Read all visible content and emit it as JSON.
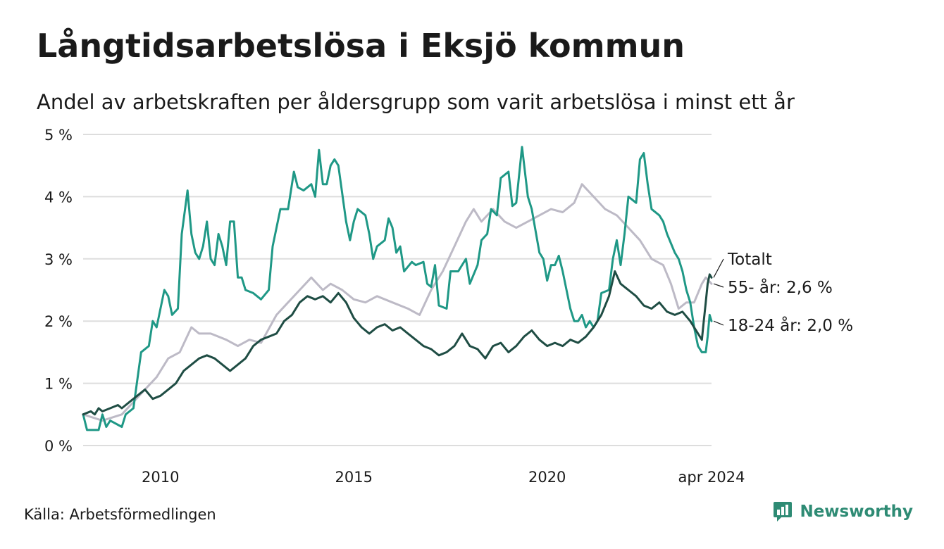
{
  "header": {
    "title": "Långtidsarbetslösa i Eksjö kommun",
    "subtitle": "Andel av arbetskraften per åldersgrupp som varit arbetslösa i minst ett år"
  },
  "footer": {
    "source": "Källa: Arbetsförmedlingen",
    "brand": "Newsworthy"
  },
  "colors": {
    "total": "#1f4d44",
    "age_18_24": "#1f9886",
    "age_55": "#bdbac6",
    "grid": "#dddddd"
  },
  "chart_data": {
    "type": "line",
    "title": "Långtidsarbetslösa i Eksjö kommun",
    "subtitle": "Andel av arbetskraften per åldersgrupp som varit arbetslösa i minst ett år",
    "xlabel": "",
    "ylabel": "",
    "xlim": [
      2008.0,
      2024.25
    ],
    "ylim": [
      0,
      5
    ],
    "y_ticks": [
      0,
      1,
      2,
      3,
      4,
      5
    ],
    "y_tick_labels": [
      "0 %",
      "1 %",
      "2 %",
      "3 %",
      "4 %",
      "5 %"
    ],
    "x_ticks": [
      2010,
      2015,
      2020,
      2024.25
    ],
    "x_tick_labels": [
      "2010",
      "2015",
      "2020",
      "apr 2024"
    ],
    "grid": true,
    "series": [
      {
        "name": "55- år",
        "end_label": "55- år: 2,6 %",
        "color": "#bdbac6",
        "points": [
          [
            2008.0,
            0.5
          ],
          [
            2008.5,
            0.4
          ],
          [
            2009.0,
            0.5
          ],
          [
            2009.3,
            0.7
          ],
          [
            2009.6,
            0.9
          ],
          [
            2009.9,
            1.1
          ],
          [
            2010.2,
            1.4
          ],
          [
            2010.5,
            1.5
          ],
          [
            2010.8,
            1.9
          ],
          [
            2011.0,
            1.8
          ],
          [
            2011.3,
            1.8
          ],
          [
            2011.7,
            1.7
          ],
          [
            2012.0,
            1.6
          ],
          [
            2012.3,
            1.7
          ],
          [
            2012.6,
            1.65
          ],
          [
            2013.0,
            2.1
          ],
          [
            2013.3,
            2.3
          ],
          [
            2013.6,
            2.5
          ],
          [
            2013.9,
            2.7
          ],
          [
            2014.2,
            2.5
          ],
          [
            2014.4,
            2.6
          ],
          [
            2014.7,
            2.5
          ],
          [
            2015.0,
            2.35
          ],
          [
            2015.3,
            2.3
          ],
          [
            2015.6,
            2.4
          ],
          [
            2016.0,
            2.3
          ],
          [
            2016.4,
            2.2
          ],
          [
            2016.7,
            2.1
          ],
          [
            2017.0,
            2.5
          ],
          [
            2017.3,
            2.8
          ],
          [
            2017.6,
            3.2
          ],
          [
            2017.9,
            3.6
          ],
          [
            2018.1,
            3.8
          ],
          [
            2018.3,
            3.6
          ],
          [
            2018.6,
            3.8
          ],
          [
            2018.9,
            3.6
          ],
          [
            2019.2,
            3.5
          ],
          [
            2019.5,
            3.6
          ],
          [
            2019.8,
            3.7
          ],
          [
            2020.1,
            3.8
          ],
          [
            2020.4,
            3.75
          ],
          [
            2020.7,
            3.9
          ],
          [
            2020.9,
            4.2
          ],
          [
            2021.2,
            4.0
          ],
          [
            2021.5,
            3.8
          ],
          [
            2021.8,
            3.7
          ],
          [
            2022.1,
            3.5
          ],
          [
            2022.4,
            3.3
          ],
          [
            2022.7,
            3.0
          ],
          [
            2023.0,
            2.9
          ],
          [
            2023.2,
            2.6
          ],
          [
            2023.4,
            2.2
          ],
          [
            2023.6,
            2.3
          ],
          [
            2023.8,
            2.3
          ],
          [
            2024.0,
            2.6
          ],
          [
            2024.1,
            2.7
          ],
          [
            2024.25,
            2.6
          ]
        ]
      },
      {
        "name": "18-24 år",
        "end_label": "18-24 år: 2,0 %",
        "color": "#1f9886",
        "points": [
          [
            2008.0,
            0.5
          ],
          [
            2008.1,
            0.25
          ],
          [
            2008.4,
            0.25
          ],
          [
            2008.5,
            0.5
          ],
          [
            2008.6,
            0.3
          ],
          [
            2008.7,
            0.4
          ],
          [
            2009.0,
            0.3
          ],
          [
            2009.1,
            0.5
          ],
          [
            2009.3,
            0.6
          ],
          [
            2009.5,
            1.5
          ],
          [
            2009.7,
            1.6
          ],
          [
            2009.8,
            2.0
          ],
          [
            2009.9,
            1.9
          ],
          [
            2010.0,
            2.2
          ],
          [
            2010.1,
            2.5
          ],
          [
            2010.2,
            2.4
          ],
          [
            2010.3,
            2.1
          ],
          [
            2010.45,
            2.2
          ],
          [
            2010.55,
            3.4
          ],
          [
            2010.7,
            4.1
          ],
          [
            2010.8,
            3.4
          ],
          [
            2010.9,
            3.1
          ],
          [
            2011.0,
            3.0
          ],
          [
            2011.1,
            3.2
          ],
          [
            2011.2,
            3.6
          ],
          [
            2011.3,
            3.0
          ],
          [
            2011.4,
            2.9
          ],
          [
            2011.5,
            3.4
          ],
          [
            2011.6,
            3.2
          ],
          [
            2011.7,
            2.9
          ],
          [
            2011.8,
            3.6
          ],
          [
            2011.9,
            3.6
          ],
          [
            2012.0,
            2.7
          ],
          [
            2012.1,
            2.7
          ],
          [
            2012.2,
            2.5
          ],
          [
            2012.4,
            2.45
          ],
          [
            2012.6,
            2.35
          ],
          [
            2012.8,
            2.5
          ],
          [
            2012.9,
            3.2
          ],
          [
            2013.1,
            3.8
          ],
          [
            2013.3,
            3.8
          ],
          [
            2013.45,
            4.4
          ],
          [
            2013.55,
            4.15
          ],
          [
            2013.7,
            4.1
          ],
          [
            2013.9,
            4.2
          ],
          [
            2014.0,
            4.0
          ],
          [
            2014.1,
            4.75
          ],
          [
            2014.2,
            4.2
          ],
          [
            2014.3,
            4.2
          ],
          [
            2014.4,
            4.5
          ],
          [
            2014.5,
            4.6
          ],
          [
            2014.6,
            4.5
          ],
          [
            2014.8,
            3.6
          ],
          [
            2014.9,
            3.3
          ],
          [
            2015.0,
            3.6
          ],
          [
            2015.1,
            3.8
          ],
          [
            2015.3,
            3.7
          ],
          [
            2015.4,
            3.4
          ],
          [
            2015.5,
            3.0
          ],
          [
            2015.6,
            3.2
          ],
          [
            2015.8,
            3.3
          ],
          [
            2015.9,
            3.65
          ],
          [
            2016.0,
            3.5
          ],
          [
            2016.1,
            3.1
          ],
          [
            2016.2,
            3.2
          ],
          [
            2016.3,
            2.8
          ],
          [
            2016.5,
            2.95
          ],
          [
            2016.6,
            2.9
          ],
          [
            2016.8,
            2.95
          ],
          [
            2016.9,
            2.6
          ],
          [
            2017.0,
            2.55
          ],
          [
            2017.1,
            2.9
          ],
          [
            2017.2,
            2.25
          ],
          [
            2017.4,
            2.2
          ],
          [
            2017.5,
            2.8
          ],
          [
            2017.7,
            2.8
          ],
          [
            2017.8,
            2.9
          ],
          [
            2017.9,
            3.0
          ],
          [
            2018.0,
            2.6
          ],
          [
            2018.2,
            2.9
          ],
          [
            2018.3,
            3.3
          ],
          [
            2018.45,
            3.4
          ],
          [
            2018.55,
            3.8
          ],
          [
            2018.7,
            3.7
          ],
          [
            2018.8,
            4.3
          ],
          [
            2019.0,
            4.4
          ],
          [
            2019.1,
            3.85
          ],
          [
            2019.2,
            3.9
          ],
          [
            2019.35,
            4.8
          ],
          [
            2019.5,
            4.0
          ],
          [
            2019.6,
            3.8
          ],
          [
            2019.8,
            3.1
          ],
          [
            2019.9,
            3.0
          ],
          [
            2020.0,
            2.65
          ],
          [
            2020.1,
            2.9
          ],
          [
            2020.2,
            2.9
          ],
          [
            2020.3,
            3.05
          ],
          [
            2020.4,
            2.8
          ],
          [
            2020.6,
            2.2
          ],
          [
            2020.7,
            2.0
          ],
          [
            2020.8,
            2.0
          ],
          [
            2020.9,
            2.1
          ],
          [
            2021.0,
            1.9
          ],
          [
            2021.1,
            2.0
          ],
          [
            2021.2,
            1.9
          ],
          [
            2021.3,
            2.0
          ],
          [
            2021.4,
            2.45
          ],
          [
            2021.6,
            2.5
          ],
          [
            2021.7,
            3.0
          ],
          [
            2021.8,
            3.3
          ],
          [
            2021.9,
            2.9
          ],
          [
            2022.0,
            3.4
          ],
          [
            2022.1,
            4.0
          ],
          [
            2022.3,
            3.9
          ],
          [
            2022.4,
            4.6
          ],
          [
            2022.5,
            4.7
          ],
          [
            2022.6,
            4.2
          ],
          [
            2022.7,
            3.8
          ],
          [
            2022.9,
            3.7
          ],
          [
            2023.0,
            3.6
          ],
          [
            2023.1,
            3.4
          ],
          [
            2023.3,
            3.1
          ],
          [
            2023.4,
            3.0
          ],
          [
            2023.5,
            2.8
          ],
          [
            2023.6,
            2.5
          ],
          [
            2023.7,
            2.3
          ],
          [
            2023.8,
            1.9
          ],
          [
            2023.9,
            1.6
          ],
          [
            2024.0,
            1.5
          ],
          [
            2024.1,
            1.5
          ],
          [
            2024.15,
            1.75
          ],
          [
            2024.2,
            2.1
          ],
          [
            2024.25,
            2.0
          ]
        ]
      },
      {
        "name": "Totalt",
        "end_label": "Totalt",
        "color": "#1f4d44",
        "points": [
          [
            2008.0,
            0.5
          ],
          [
            2008.2,
            0.55
          ],
          [
            2008.3,
            0.5
          ],
          [
            2008.4,
            0.6
          ],
          [
            2008.5,
            0.55
          ],
          [
            2008.7,
            0.6
          ],
          [
            2008.9,
            0.65
          ],
          [
            2009.0,
            0.6
          ],
          [
            2009.2,
            0.7
          ],
          [
            2009.4,
            0.8
          ],
          [
            2009.6,
            0.9
          ],
          [
            2009.8,
            0.75
          ],
          [
            2010.0,
            0.8
          ],
          [
            2010.2,
            0.9
          ],
          [
            2010.4,
            1.0
          ],
          [
            2010.6,
            1.2
          ],
          [
            2010.8,
            1.3
          ],
          [
            2011.0,
            1.4
          ],
          [
            2011.2,
            1.45
          ],
          [
            2011.4,
            1.4
          ],
          [
            2011.6,
            1.3
          ],
          [
            2011.8,
            1.2
          ],
          [
            2012.0,
            1.3
          ],
          [
            2012.2,
            1.4
          ],
          [
            2012.4,
            1.6
          ],
          [
            2012.6,
            1.7
          ],
          [
            2012.8,
            1.75
          ],
          [
            2013.0,
            1.8
          ],
          [
            2013.2,
            2.0
          ],
          [
            2013.4,
            2.1
          ],
          [
            2013.6,
            2.3
          ],
          [
            2013.8,
            2.4
          ],
          [
            2014.0,
            2.35
          ],
          [
            2014.2,
            2.4
          ],
          [
            2014.4,
            2.3
          ],
          [
            2014.6,
            2.45
          ],
          [
            2014.8,
            2.3
          ],
          [
            2015.0,
            2.05
          ],
          [
            2015.2,
            1.9
          ],
          [
            2015.4,
            1.8
          ],
          [
            2015.6,
            1.9
          ],
          [
            2015.8,
            1.95
          ],
          [
            2016.0,
            1.85
          ],
          [
            2016.2,
            1.9
          ],
          [
            2016.4,
            1.8
          ],
          [
            2016.6,
            1.7
          ],
          [
            2016.8,
            1.6
          ],
          [
            2017.0,
            1.55
          ],
          [
            2017.2,
            1.45
          ],
          [
            2017.4,
            1.5
          ],
          [
            2017.6,
            1.6
          ],
          [
            2017.8,
            1.8
          ],
          [
            2018.0,
            1.6
          ],
          [
            2018.2,
            1.55
          ],
          [
            2018.4,
            1.4
          ],
          [
            2018.6,
            1.6
          ],
          [
            2018.8,
            1.65
          ],
          [
            2019.0,
            1.5
          ],
          [
            2019.2,
            1.6
          ],
          [
            2019.4,
            1.75
          ],
          [
            2019.6,
            1.85
          ],
          [
            2019.8,
            1.7
          ],
          [
            2020.0,
            1.6
          ],
          [
            2020.2,
            1.65
          ],
          [
            2020.4,
            1.6
          ],
          [
            2020.6,
            1.7
          ],
          [
            2020.8,
            1.65
          ],
          [
            2021.0,
            1.75
          ],
          [
            2021.2,
            1.9
          ],
          [
            2021.4,
            2.1
          ],
          [
            2021.6,
            2.4
          ],
          [
            2021.75,
            2.8
          ],
          [
            2021.9,
            2.6
          ],
          [
            2022.1,
            2.5
          ],
          [
            2022.3,
            2.4
          ],
          [
            2022.5,
            2.25
          ],
          [
            2022.7,
            2.2
          ],
          [
            2022.9,
            2.3
          ],
          [
            2023.1,
            2.15
          ],
          [
            2023.3,
            2.1
          ],
          [
            2023.5,
            2.15
          ],
          [
            2023.7,
            2.0
          ],
          [
            2023.9,
            1.8
          ],
          [
            2024.0,
            1.7
          ],
          [
            2024.05,
            2.0
          ],
          [
            2024.1,
            2.3
          ],
          [
            2024.15,
            2.6
          ],
          [
            2024.2,
            2.75
          ],
          [
            2024.25,
            2.7
          ]
        ]
      }
    ]
  }
}
